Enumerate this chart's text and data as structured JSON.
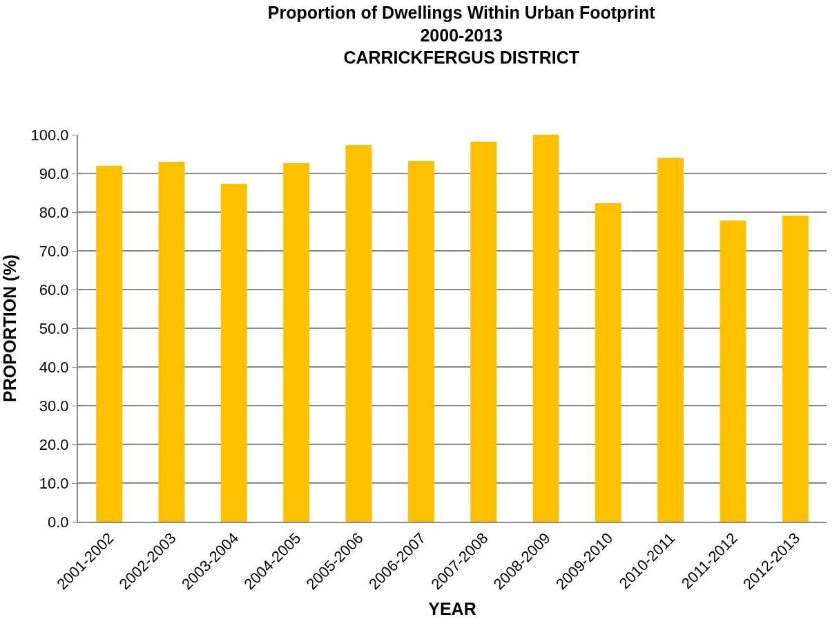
{
  "chart_data": {
    "type": "bar",
    "title": "Proportion of Dwellings Within Urban Footprint\n2000-2013\nCARRICKFERGUS DISTRICT",
    "xlabel": "YEAR",
    "ylabel": "PROPORTION (%)",
    "categories": [
      "2001-2002",
      "2002-2003",
      "2003-2004",
      "2004-2005",
      "2005-2006",
      "2006-2007",
      "2007-2008",
      "2008-2009",
      "2009-2010",
      "2010-2011",
      "2011-2012",
      "2012-2013"
    ],
    "values": [
      92.0,
      93.0,
      87.3,
      92.7,
      97.3,
      93.2,
      98.2,
      100.0,
      82.3,
      94.0,
      77.8,
      79.1
    ],
    "color": "#ffc000",
    "ylim": [
      0,
      100
    ],
    "yticks": [
      {
        "value": 0,
        "label": "0.0"
      },
      {
        "value": 10,
        "label": "10.0"
      },
      {
        "value": 20,
        "label": "20.0"
      },
      {
        "value": 30,
        "label": "30.0"
      },
      {
        "value": 40,
        "label": "40.0"
      },
      {
        "value": 50,
        "label": "50.0"
      },
      {
        "value": 60,
        "label": "60.0"
      },
      {
        "value": 70,
        "label": "70.0"
      },
      {
        "value": 80,
        "label": "80.0"
      },
      {
        "value": 90,
        "label": "90.0"
      },
      {
        "value": 100,
        "label": "100.0"
      }
    ],
    "grid": "y",
    "legend": false
  }
}
